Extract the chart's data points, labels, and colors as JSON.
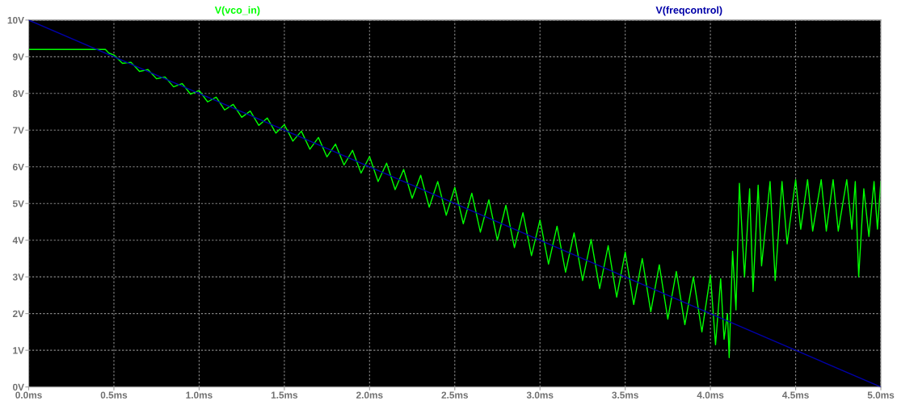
{
  "chart_data": {
    "type": "line",
    "xlim": [
      0,
      5
    ],
    "ylim": [
      0,
      10
    ],
    "xticks": [
      {
        "value": 0,
        "label": "0.0ms"
      },
      {
        "value": 0.5,
        "label": "0.5ms"
      },
      {
        "value": 1,
        "label": "1.0ms"
      },
      {
        "value": 1.5,
        "label": "1.5ms"
      },
      {
        "value": 2,
        "label": "2.0ms"
      },
      {
        "value": 2.5,
        "label": "2.5ms"
      },
      {
        "value": 3,
        "label": "3.0ms"
      },
      {
        "value": 3.5,
        "label": "3.5ms"
      },
      {
        "value": 4,
        "label": "4.0ms"
      },
      {
        "value": 4.5,
        "label": "4.5ms"
      },
      {
        "value": 5,
        "label": "5.0ms"
      }
    ],
    "yticks": [
      {
        "value": 0,
        "label": "0V"
      },
      {
        "value": 1,
        "label": "1V"
      },
      {
        "value": 2,
        "label": "2V"
      },
      {
        "value": 3,
        "label": "3V"
      },
      {
        "value": 4,
        "label": "4V"
      },
      {
        "value": 5,
        "label": "5V"
      },
      {
        "value": 6,
        "label": "6V"
      },
      {
        "value": 7,
        "label": "7V"
      },
      {
        "value": 8,
        "label": "8V"
      },
      {
        "value": 9,
        "label": "9V"
      },
      {
        "value": 10,
        "label": "10V"
      }
    ],
    "grid": true,
    "legend": "top",
    "marker": "none",
    "line_style": "solid",
    "series": [
      {
        "name": "V(vco_in)",
        "color": "#00ff00",
        "x": [
          0,
          0.45,
          0.47,
          0.5,
          0.55,
          0.6,
          0.65,
          0.7,
          0.75,
          0.8,
          0.85,
          0.9,
          0.95,
          1.0,
          1.05,
          1.1,
          1.15,
          1.2,
          1.25,
          1.3,
          1.35,
          1.4,
          1.45,
          1.5,
          1.55,
          1.6,
          1.65,
          1.7,
          1.75,
          1.8,
          1.85,
          1.9,
          1.95,
          2.0,
          2.05,
          2.1,
          2.15,
          2.2,
          2.25,
          2.3,
          2.35,
          2.4,
          2.45,
          2.5,
          2.55,
          2.6,
          2.65,
          2.7,
          2.75,
          2.8,
          2.85,
          2.9,
          2.95,
          3.0,
          3.05,
          3.1,
          3.15,
          3.2,
          3.25,
          3.3,
          3.35,
          3.4,
          3.45,
          3.5,
          3.55,
          3.6,
          3.65,
          3.7,
          3.75,
          3.8,
          3.85,
          3.9,
          3.95,
          4.0,
          4.03,
          4.06,
          4.08,
          4.1,
          4.11,
          4.13,
          4.15,
          4.17,
          4.2,
          4.23,
          4.25,
          4.28,
          4.3,
          4.35,
          4.38,
          4.42,
          4.45,
          4.5,
          4.53,
          4.57,
          4.6,
          4.65,
          4.68,
          4.72,
          4.75,
          4.8,
          4.83,
          4.85,
          4.87,
          4.9,
          4.93,
          4.96,
          4.98,
          5.0
        ],
        "values": [
          9.2,
          9.2,
          9.1,
          9.05,
          8.82,
          8.85,
          8.6,
          8.65,
          8.4,
          8.45,
          8.18,
          8.27,
          7.98,
          8.08,
          7.77,
          7.9,
          7.55,
          7.7,
          7.35,
          7.52,
          7.13,
          7.33,
          6.92,
          7.15,
          6.7,
          6.97,
          6.48,
          6.8,
          6.27,
          6.62,
          6.05,
          6.45,
          5.83,
          6.28,
          5.6,
          6.1,
          5.38,
          5.93,
          5.14,
          5.77,
          4.9,
          5.6,
          4.68,
          5.44,
          4.45,
          5.28,
          4.22,
          5.1,
          4.0,
          4.95,
          3.8,
          4.75,
          3.58,
          4.55,
          3.35,
          4.38,
          3.13,
          4.2,
          2.9,
          4.02,
          2.68,
          3.85,
          2.45,
          3.68,
          2.25,
          3.5,
          2.05,
          3.33,
          1.85,
          3.15,
          1.7,
          3.0,
          1.5,
          3.05,
          1.15,
          2.95,
          1.3,
          2.0,
          0.8,
          3.7,
          2.1,
          5.55,
          3.0,
          5.4,
          2.6,
          5.5,
          3.3,
          5.6,
          2.9,
          5.6,
          3.9,
          5.65,
          4.3,
          5.65,
          4.25,
          5.65,
          4.25,
          5.65,
          4.25,
          5.65,
          4.3,
          5.6,
          3.0,
          5.4,
          4.1,
          5.6,
          4.3,
          5.6
        ]
      },
      {
        "name": "V(freqcontrol)",
        "color": "#0000a8",
        "x": [
          0,
          5
        ],
        "values": [
          10,
          0
        ]
      }
    ]
  }
}
